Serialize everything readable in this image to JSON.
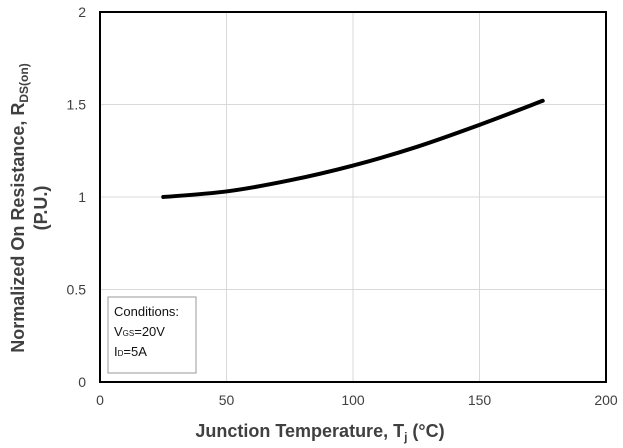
{
  "chart_data": {
    "type": "line",
    "title": "",
    "xlabel": {
      "main": "Junction Temperature, T",
      "sub": "j",
      "unit": " (°C)"
    },
    "ylabel": {
      "line1_main": "Normalized On Resistance, R",
      "line1_sub": "DS(on)",
      "line2": "(P.U.)"
    },
    "xlim": [
      0,
      200
    ],
    "ylim": [
      0,
      2
    ],
    "xticks": [
      "0",
      "50",
      "100",
      "150",
      "200"
    ],
    "yticks": [
      "0",
      "0.5",
      "1",
      "1.5",
      "2"
    ],
    "grid": true,
    "series": [
      {
        "x": [
          25,
          50,
          75,
          100,
          125,
          150,
          175
        ],
        "y": [
          1.0,
          1.03,
          1.09,
          1.17,
          1.27,
          1.39,
          1.52
        ]
      }
    ],
    "annotation": {
      "title": "Conditions:",
      "vgs": {
        "main": "V",
        "sub": "GS",
        "value": "=20V"
      },
      "id": {
        "main": "I",
        "sub": "D",
        "value": "=5A"
      }
    }
  }
}
